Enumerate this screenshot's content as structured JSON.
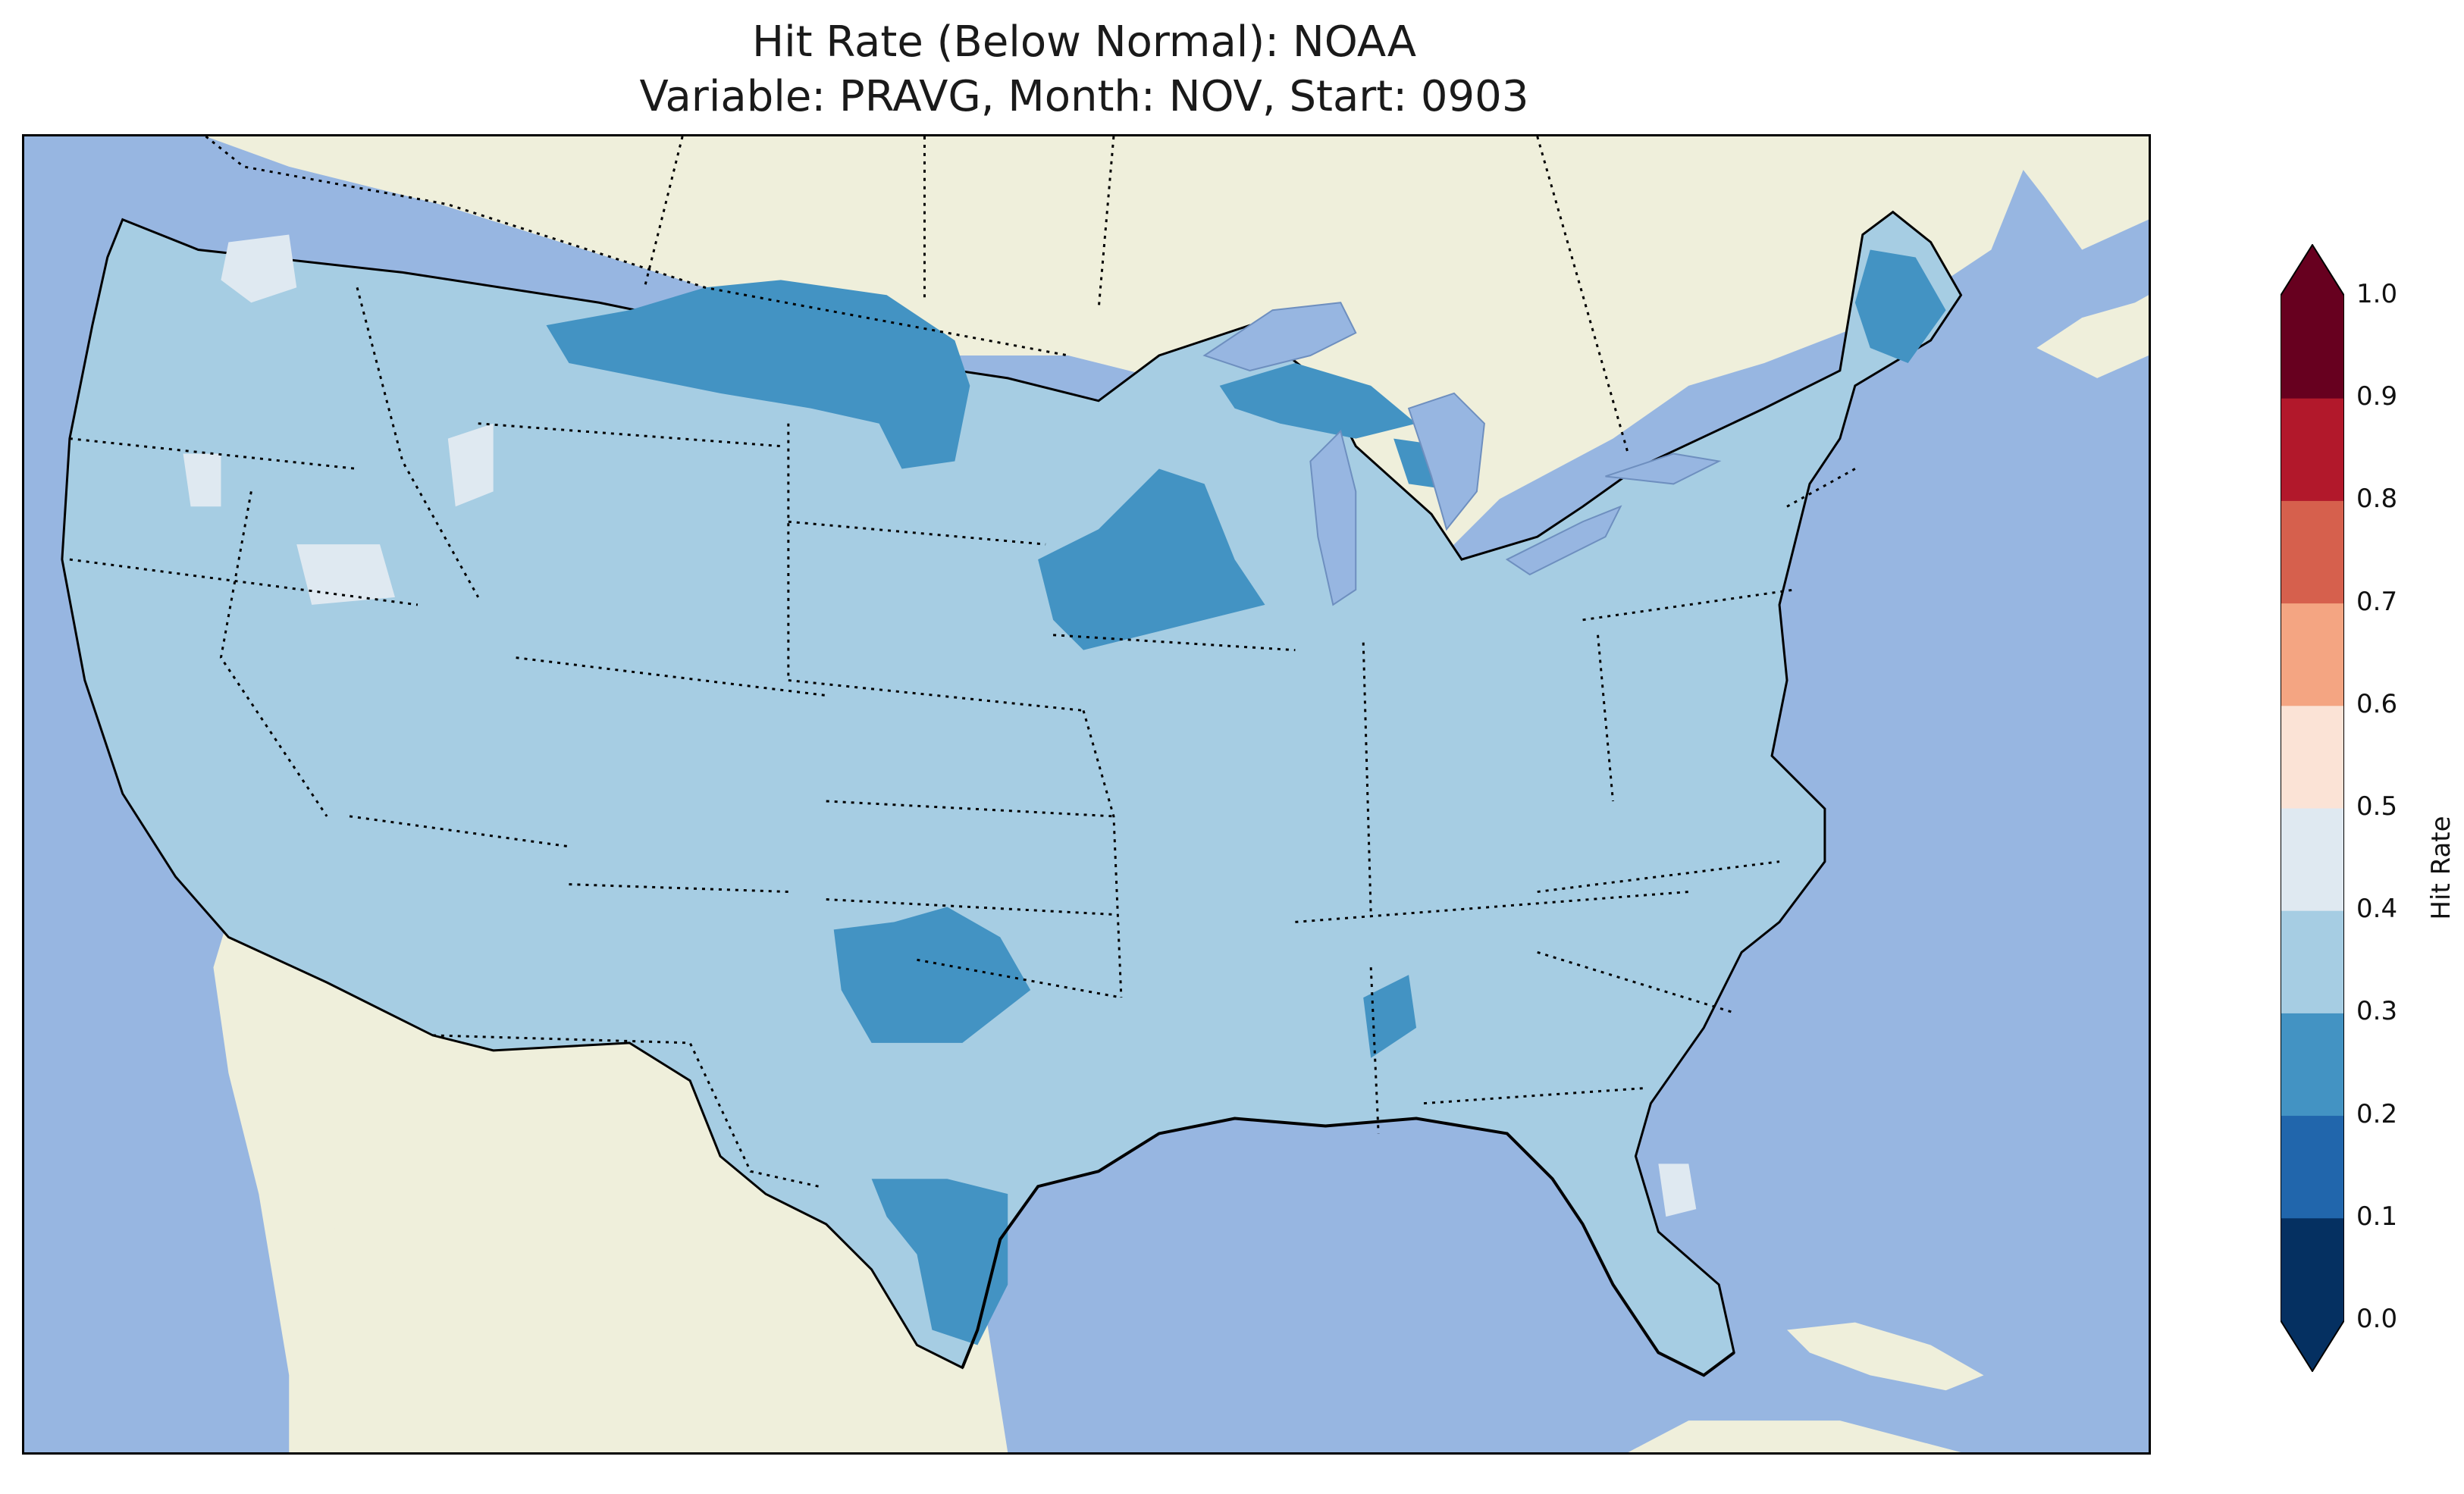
{
  "title": {
    "line1": "Hit Rate (Below Normal): NOAA",
    "line2": "Variable: PRAVG, Month: NOV, Start: 0903"
  },
  "colors": {
    "ocean": "#97b6e1",
    "land": "#efefdb",
    "lakes": "#97b6e1",
    "hit_0_1": "#053061",
    "hit_1_2": "#2166ac",
    "hit_2_3": "#4393c3",
    "hit_3_4": "#a6cde3",
    "hit_4_5": "#dfe9f1",
    "hit_5_6": "#fbe3d6",
    "hit_6_7": "#f4a582",
    "hit_7_8": "#d6604d",
    "hit_8_9": "#b2182b",
    "hit_9_10": "#67001f"
  },
  "colorbar": {
    "label": "Hit Rate",
    "ticks": [
      "0.0",
      "0.1",
      "0.2",
      "0.3",
      "0.4",
      "0.5",
      "0.6",
      "0.7",
      "0.8",
      "0.9",
      "1.0"
    ],
    "levels": [
      0.0,
      0.1,
      0.2,
      0.3,
      0.4,
      0.5,
      0.6,
      0.7,
      0.8,
      0.9,
      1.0
    ],
    "extend": "both"
  },
  "map": {
    "region": "Contiguous United States",
    "projection": "PlateCarree",
    "dominant_hit_rate_range": [
      0.3,
      0.4
    ],
    "low_regions_0_2_to_0_3": [
      "Montana/North Dakota",
      "Minnesota/Wisconsin",
      "Michigan Upper Peninsula",
      "Maine",
      "Texas/Oklahoma",
      "South Texas",
      "Alabama"
    ],
    "high_regions_0_4_to_0_5": [
      "Washington",
      "Idaho",
      "Nevada",
      "Northern California",
      "Florida"
    ]
  }
}
